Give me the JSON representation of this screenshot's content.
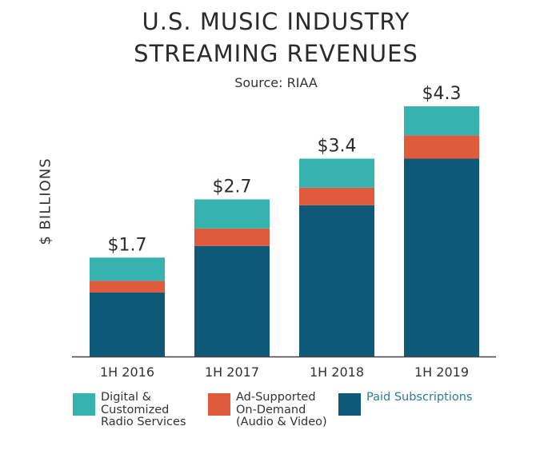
{
  "title_lines": [
    "U.S. MUSIC INDUSTRY",
    "STREAMING REVENUES"
  ],
  "source": "Source: RIAA",
  "chart_data": {
    "type": "bar",
    "stacked": true,
    "title": "U.S. MUSIC INDUSTRY STREAMING REVENUES",
    "ylabel": "$ BILLIONS",
    "xlabel": "",
    "categories": [
      "1H 2016",
      "1H 2017",
      "1H 2018",
      "1H 2019"
    ],
    "totals_labels": [
      "$1.7",
      "$2.7",
      "$3.4",
      "$4.3"
    ],
    "series": [
      {
        "name": "Paid Subscriptions",
        "values": [
          1.1,
          1.9,
          2.6,
          3.4
        ]
      },
      {
        "name": "Ad-Supported On-Demand (Audio & Video)",
        "values": [
          0.2,
          0.3,
          0.3,
          0.4
        ]
      },
      {
        "name": "Digital & Customized Radio Services",
        "values": [
          0.4,
          0.5,
          0.5,
          0.5
        ]
      }
    ],
    "ylim": [
      0,
      4.3
    ],
    "grid": false,
    "legend_position": "bottom"
  },
  "colors": {
    "paid": "#0e5878",
    "ad": "#e05a3c",
    "radio": "#36b3ae",
    "axis": "#444444",
    "paid_legend_text": "#2a7ca0"
  },
  "legend": [
    {
      "label": "Digital &\nCustomized\nRadio Services",
      "color_key": "radio"
    },
    {
      "label": "Ad-Supported\nOn-Demand\n(Audio & Video)",
      "color_key": "ad"
    },
    {
      "label": "Paid Subscriptions",
      "color_key": "paid"
    }
  ]
}
